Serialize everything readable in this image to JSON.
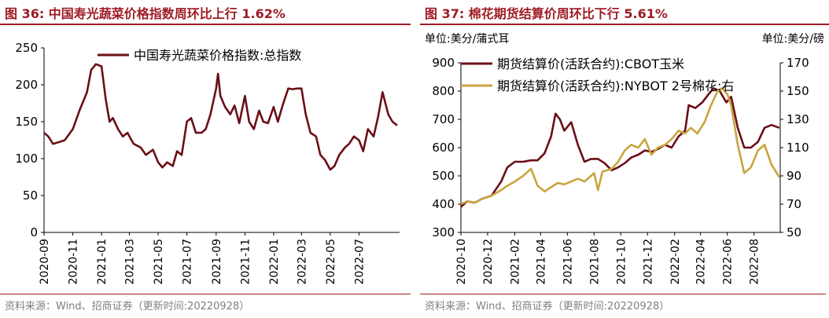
{
  "colors": {
    "title": "#9e1b24",
    "series_dark": "#6b0f17",
    "series_gold": "#c9a43f",
    "source": "#7f7f7f"
  },
  "source_text": "资料来源：Wind、招商证券（更新时间:20220928）",
  "chart_data": [
    {
      "type": "line",
      "title": "图 36:  中国寿光蔬菜价格指数周环比上行 1.62%",
      "xlabel": "",
      "ylabel": "",
      "ylim": [
        0,
        250
      ],
      "yticks": [
        0,
        50,
        100,
        150,
        200,
        250
      ],
      "xlim": [
        "2020-09-01",
        "2022-09-25"
      ],
      "xticks": [
        "2020-09",
        "2020-11",
        "2021-01",
        "2021-03",
        "2021-05",
        "2021-07",
        "2021-09",
        "2021-11",
        "2022-01",
        "2022-03",
        "2022-05",
        "2022-07"
      ],
      "grid": false,
      "legend_position": "top",
      "series": [
        {
          "name": "中国寿光蔬菜价格指数:总指数",
          "color": "#6b0f17",
          "x": [
            "2020-09-01",
            "2020-09-10",
            "2020-09-20",
            "2020-10-01",
            "2020-10-15",
            "2020-11-01",
            "2020-11-15",
            "2020-12-01",
            "2020-12-10",
            "2020-12-20",
            "2021-01-01",
            "2021-01-10",
            "2021-01-18",
            "2021-01-25",
            "2021-02-05",
            "2021-02-15",
            "2021-02-25",
            "2021-03-10",
            "2021-03-25",
            "2021-04-05",
            "2021-04-20",
            "2021-05-01",
            "2021-05-10",
            "2021-05-20",
            "2021-06-01",
            "2021-06-10",
            "2021-06-20",
            "2021-07-01",
            "2021-07-10",
            "2021-07-20",
            "2021-08-01",
            "2021-08-10",
            "2021-08-20",
            "2021-09-01",
            "2021-09-05",
            "2021-09-10",
            "2021-09-20",
            "2021-10-01",
            "2021-10-10",
            "2021-10-20",
            "2021-11-01",
            "2021-11-10",
            "2021-11-20",
            "2021-12-01",
            "2021-12-10",
            "2021-12-20",
            "2022-01-01",
            "2022-01-10",
            "2022-01-20",
            "2022-02-01",
            "2022-02-10",
            "2022-02-20",
            "2022-03-01",
            "2022-03-10",
            "2022-03-20",
            "2022-04-01",
            "2022-04-10",
            "2022-04-20",
            "2022-05-01",
            "2022-05-10",
            "2022-05-20",
            "2022-06-01",
            "2022-06-10",
            "2022-06-20",
            "2022-07-01",
            "2022-07-10",
            "2022-07-20",
            "2022-08-01",
            "2022-08-10",
            "2022-08-20",
            "2022-09-01",
            "2022-09-10",
            "2022-09-20"
          ],
          "values": [
            135,
            130,
            120,
            122,
            125,
            140,
            165,
            190,
            220,
            228,
            225,
            180,
            150,
            155,
            140,
            130,
            135,
            120,
            115,
            105,
            112,
            95,
            88,
            95,
            90,
            110,
            105,
            150,
            155,
            135,
            135,
            140,
            160,
            195,
            215,
            185,
            170,
            160,
            172,
            148,
            185,
            150,
            140,
            165,
            150,
            148,
            170,
            150,
            172,
            195,
            194,
            195,
            195,
            160,
            135,
            130,
            105,
            98,
            85,
            90,
            105,
            115,
            120,
            130,
            125,
            110,
            140,
            130,
            155,
            190,
            160,
            150,
            145
          ]
        }
      ]
    },
    {
      "type": "line",
      "title": "图 37:  棉花期货结算价周环比下行 5.61%",
      "xlabel": "",
      "ylabel": "",
      "left_unit": "单位:美分/蒲式耳",
      "right_unit": "单位:美分/磅",
      "ylim": [
        300,
        900
      ],
      "yticks": [
        300,
        400,
        500,
        600,
        700,
        800,
        900
      ],
      "y2lim": [
        50,
        170
      ],
      "y2ticks": [
        50,
        70,
        90,
        110,
        130,
        150,
        170
      ],
      "xlim": [
        "2020-10-01",
        "2022-09-30"
      ],
      "xticks": [
        "2020-10",
        "2020-12",
        "2021-02",
        "2021-04",
        "2021-06",
        "2021-08",
        "2021-10",
        "2021-12",
        "2022-02",
        "2022-04",
        "2022-06",
        "2022-08"
      ],
      "grid": false,
      "legend_position": "top-left",
      "series": [
        {
          "name": "期货结算价(活跃合约):CBOT玉米",
          "axis": "left",
          "color": "#6b0f17",
          "x": [
            "2020-10-01",
            "2020-10-15",
            "2020-11-01",
            "2020-11-20",
            "2020-12-10",
            "2021-01-01",
            "2021-01-15",
            "2021-02-01",
            "2021-02-20",
            "2021-03-10",
            "2021-03-25",
            "2021-04-10",
            "2021-04-25",
            "2021-05-05",
            "2021-05-15",
            "2021-05-25",
            "2021-06-10",
            "2021-06-25",
            "2021-07-10",
            "2021-07-25",
            "2021-08-10",
            "2021-08-25",
            "2021-09-10",
            "2021-09-25",
            "2021-10-10",
            "2021-10-25",
            "2021-11-10",
            "2021-11-25",
            "2021-12-10",
            "2021-12-25",
            "2022-01-10",
            "2022-01-25",
            "2022-02-10",
            "2022-02-25",
            "2022-03-05",
            "2022-03-20",
            "2022-04-05",
            "2022-04-20",
            "2022-05-01",
            "2022-05-15",
            "2022-05-30",
            "2022-06-10",
            "2022-06-25",
            "2022-07-10",
            "2022-07-25",
            "2022-08-10",
            "2022-08-25",
            "2022-09-10",
            "2022-09-28"
          ],
          "values": [
            390,
            410,
            405,
            420,
            430,
            480,
            530,
            550,
            550,
            555,
            555,
            580,
            640,
            720,
            700,
            660,
            690,
            610,
            550,
            560,
            560,
            545,
            520,
            530,
            545,
            565,
            575,
            590,
            585,
            595,
            610,
            600,
            640,
            660,
            750,
            740,
            760,
            790,
            810,
            800,
            760,
            780,
            670,
            600,
            600,
            620,
            670,
            680,
            670
          ]
        },
        {
          "name": "期货结算价(活跃合约):NYBOT 2号棉花:右",
          "axis": "right",
          "color": "#c9a43f",
          "x": [
            "2020-10-01",
            "2020-10-15",
            "2020-11-01",
            "2020-11-20",
            "2020-12-10",
            "2021-01-01",
            "2021-01-15",
            "2021-02-01",
            "2021-02-20",
            "2021-03-10",
            "2021-03-25",
            "2021-04-10",
            "2021-04-25",
            "2021-05-10",
            "2021-05-25",
            "2021-06-10",
            "2021-06-25",
            "2021-07-10",
            "2021-07-25",
            "2021-08-01",
            "2021-08-10",
            "2021-08-20",
            "2021-09-10",
            "2021-09-25",
            "2021-10-10",
            "2021-10-25",
            "2021-11-10",
            "2021-11-25",
            "2021-12-10",
            "2021-12-25",
            "2022-01-10",
            "2022-01-25",
            "2022-02-10",
            "2022-02-25",
            "2022-03-10",
            "2022-03-25",
            "2022-04-10",
            "2022-04-25",
            "2022-05-10",
            "2022-05-20",
            "2022-06-01",
            "2022-06-10",
            "2022-06-25",
            "2022-07-10",
            "2022-07-25",
            "2022-08-10",
            "2022-08-25",
            "2022-09-10",
            "2022-09-28"
          ],
          "values": [
            70,
            72,
            71,
            74,
            76,
            80,
            83,
            86,
            90,
            95,
            83,
            79,
            82,
            85,
            84,
            86,
            88,
            86,
            90,
            92,
            80,
            93,
            95,
            100,
            108,
            112,
            110,
            116,
            105,
            110,
            112,
            116,
            122,
            120,
            124,
            120,
            128,
            140,
            150,
            152,
            148,
            140,
            112,
            92,
            96,
            108,
            112,
            98,
            89
          ]
        }
      ]
    }
  ]
}
